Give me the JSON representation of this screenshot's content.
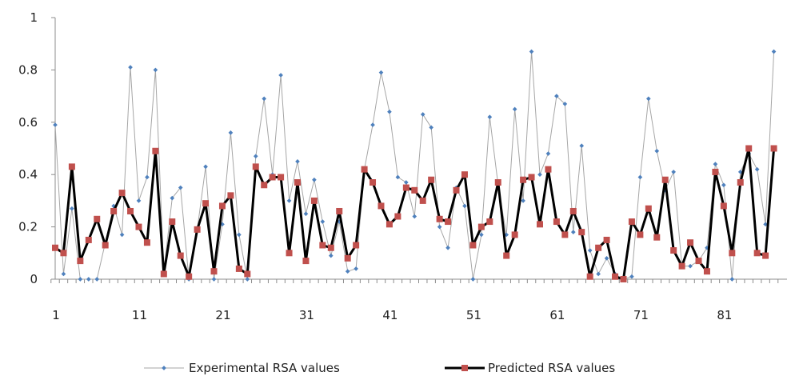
{
  "chart_data": {
    "type": "line",
    "title": "",
    "xlabel": "",
    "ylabel": "",
    "xlim": [
      1,
      88
    ],
    "ylim": [
      0,
      1
    ],
    "y_ticks": [
      "0",
      "0.2",
      "0.4",
      "0.6",
      "0.8",
      "1"
    ],
    "y_tick_values": [
      0,
      0.2,
      0.4,
      0.6,
      0.8,
      1
    ],
    "x_ticks": [
      "1",
      "11",
      "21",
      "31",
      "41",
      "51",
      "61",
      "71",
      "81"
    ],
    "x_tick_values": [
      1,
      11,
      21,
      31,
      41,
      51,
      61,
      71,
      81
    ],
    "grid": false,
    "legend_position": "bottom",
    "series": [
      {
        "name": "Experimental RSA values",
        "color": "#a6a6a6",
        "marker_color": "#4f81bd",
        "values": [
          0.59,
          0.02,
          0.27,
          0,
          0,
          0,
          0.14,
          0.28,
          0.17,
          0.81,
          0.3,
          0.39,
          0.8,
          0.03,
          0.31,
          0.35,
          0,
          0.19,
          0.43,
          0,
          0.21,
          0.56,
          0.17,
          0,
          0.47,
          0.69,
          0.4,
          0.78,
          0.3,
          0.45,
          0.25,
          0.38,
          0.22,
          0.09,
          0.22,
          0.03,
          0.04,
          0.42,
          0.59,
          0.79,
          0.64,
          0.39,
          0.37,
          0.24,
          0.63,
          0.58,
          0.2,
          0.12,
          0.35,
          0.28,
          0,
          0.17,
          0.62,
          0.36,
          0.17,
          0.65,
          0.3,
          0.87,
          0.4,
          0.48,
          0.7,
          0.67,
          0.18,
          0.51,
          0.11,
          0.02,
          0.08,
          0.02,
          0,
          0.01,
          0.39,
          0.69,
          0.49,
          0.34,
          0.41,
          0.05,
          0.05,
          0.07,
          0.12,
          0.44,
          0.36,
          0,
          0.41,
          0.48,
          0.42,
          0.21,
          0.87
        ]
      },
      {
        "name": "Predicted RSA values",
        "color": "#000000",
        "marker_color": "#c0504d",
        "values": [
          0.12,
          0.1,
          0.43,
          0.07,
          0.15,
          0.23,
          0.13,
          0.26,
          0.33,
          0.26,
          0.2,
          0.14,
          0.49,
          0.02,
          0.22,
          0.09,
          0.01,
          0.19,
          0.29,
          0.03,
          0.28,
          0.32,
          0.04,
          0.02,
          0.43,
          0.36,
          0.39,
          0.39,
          0.1,
          0.37,
          0.07,
          0.3,
          0.13,
          0.12,
          0.26,
          0.08,
          0.13,
          0.42,
          0.37,
          0.28,
          0.21,
          0.24,
          0.35,
          0.34,
          0.3,
          0.38,
          0.23,
          0.22,
          0.34,
          0.4,
          0.13,
          0.2,
          0.22,
          0.37,
          0.09,
          0.17,
          0.38,
          0.39,
          0.21,
          0.42,
          0.22,
          0.17,
          0.26,
          0.18,
          0.01,
          0.12,
          0.15,
          0.01,
          0,
          0.22,
          0.17,
          0.27,
          0.16,
          0.38,
          0.11,
          0.05,
          0.14,
          0.07,
          0.03,
          0.41,
          0.28,
          0.1,
          0.37,
          0.5,
          0.1,
          0.09,
          0.5
        ]
      }
    ]
  }
}
